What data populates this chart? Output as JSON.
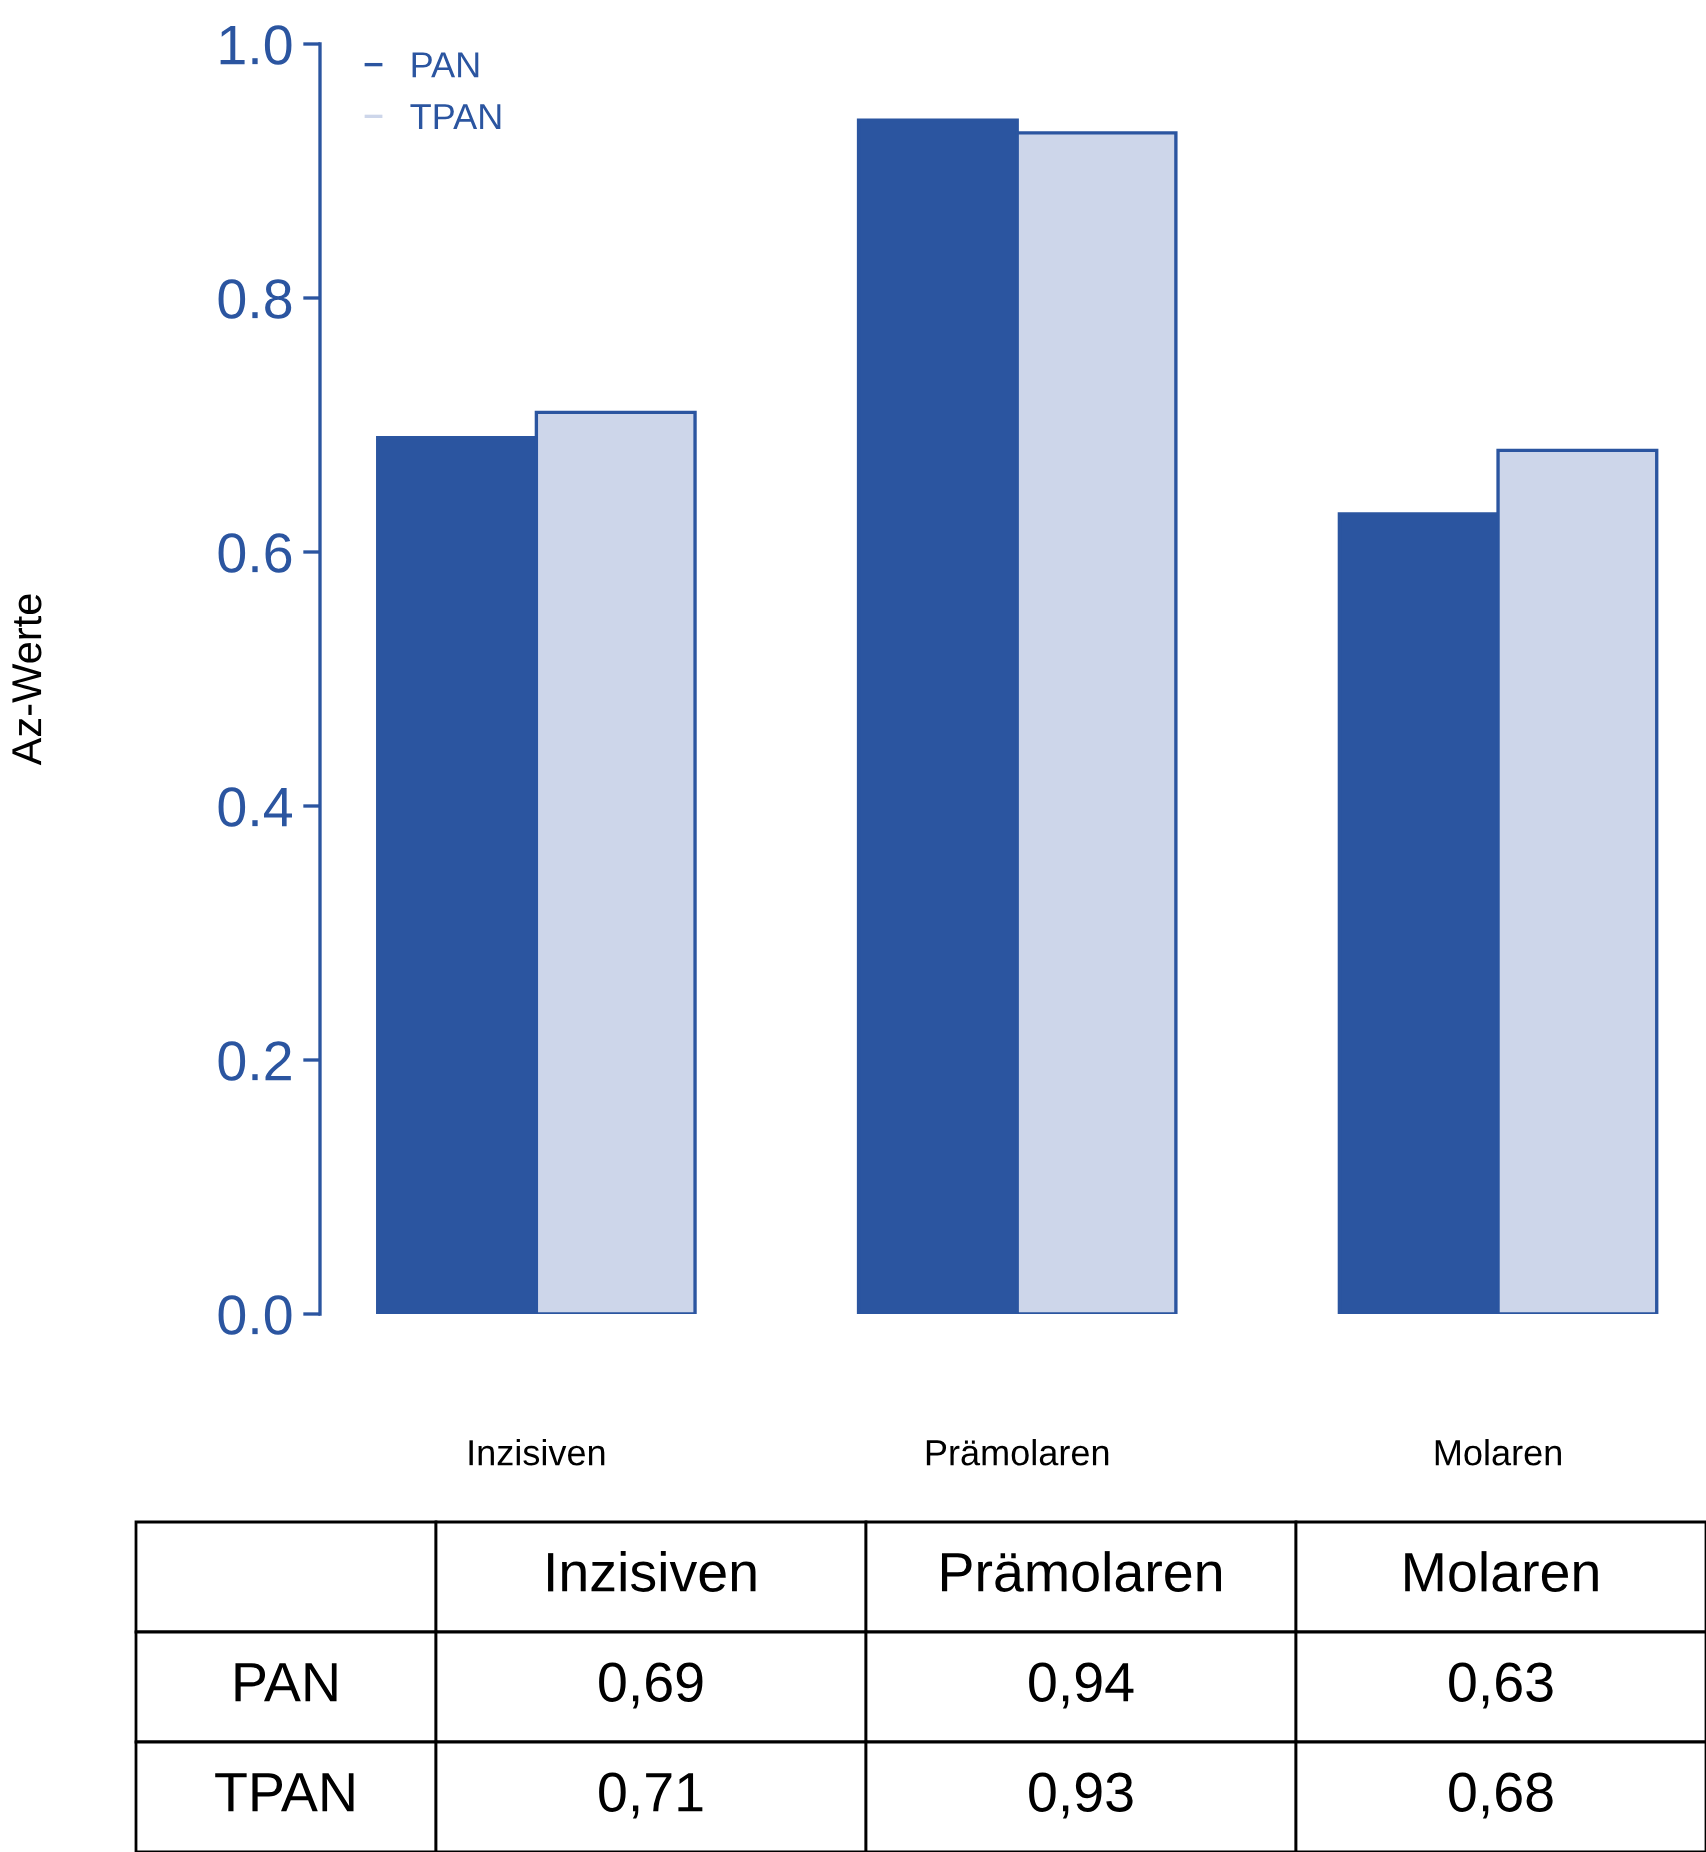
{
  "chart_data": {
    "type": "bar",
    "ylabel": "Az-Werte",
    "categories": [
      "Inzisiven",
      "Prämolaren",
      "Molaren"
    ],
    "series": [
      {
        "name": "PAN",
        "color": "#2b55a0",
        "values": [
          0.69,
          0.94,
          0.63
        ],
        "value_labels": [
          "0,69",
          "0,94",
          "0,63"
        ]
      },
      {
        "name": "TPAN",
        "color": "#cdd6ea",
        "values": [
          0.71,
          0.93,
          0.68
        ],
        "value_labels": [
          "0,71",
          "0,93",
          "0,68"
        ]
      }
    ],
    "ylim": [
      0,
      1
    ],
    "yticks": [
      {
        "value": 0,
        "label": "0.0"
      },
      {
        "value": 0.2,
        "label": "0.2"
      },
      {
        "value": 0.4,
        "label": "0.4"
      },
      {
        "value": 0.6,
        "label": "0.6"
      },
      {
        "value": 0.8,
        "label": "0.8"
      },
      {
        "value": 1,
        "label": "1.0"
      }
    ],
    "grid": false,
    "legend": "top left"
  }
}
